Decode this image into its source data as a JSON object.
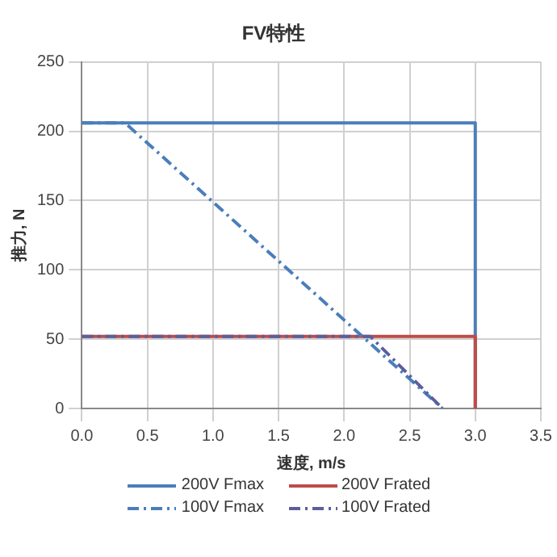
{
  "chart_data": {
    "type": "line",
    "title": "FV特性",
    "xlabel": "速度, m/s",
    "ylabel": "推力, N",
    "xlim": [
      0,
      3.5
    ],
    "xticks": [
      {
        "value": 0,
        "label": "0.0"
      },
      {
        "value": 0.5,
        "label": "0.5"
      },
      {
        "value": 1,
        "label": "1.0"
      },
      {
        "value": 1.5,
        "label": "1.5"
      },
      {
        "value": 2,
        "label": "2.0"
      },
      {
        "value": 2.5,
        "label": "2.5"
      },
      {
        "value": 3,
        "label": "3.0"
      },
      {
        "value": 3.5,
        "label": "3.5"
      }
    ],
    "ylim": [
      0,
      250
    ],
    "yticks": [
      0,
      50,
      100,
      150,
      200,
      250
    ],
    "grid": true,
    "legend": "bottom",
    "marker": "none",
    "series": [
      {
        "name": "200V Fmax",
        "color": "#4a7ebb",
        "line_style": "solid",
        "x": [
          0,
          3,
          3
        ],
        "values": [
          206,
          206,
          0
        ]
      },
      {
        "name": "200V Frated",
        "color": "#be4b48",
        "line_style": "solid",
        "x": [
          0,
          3,
          3
        ],
        "values": [
          52,
          52,
          0
        ]
      },
      {
        "name": "100V Fmax",
        "color": "#4a7ebb",
        "line_style": "dashed",
        "x": [
          0,
          0.33,
          2.75
        ],
        "values": [
          206,
          206,
          0
        ]
      },
      {
        "name": "100V Frated",
        "color": "#5a5f9c",
        "line_style": "dashed",
        "x": [
          0,
          2.2,
          2.75
        ],
        "values": [
          52,
          52,
          0
        ]
      }
    ]
  }
}
